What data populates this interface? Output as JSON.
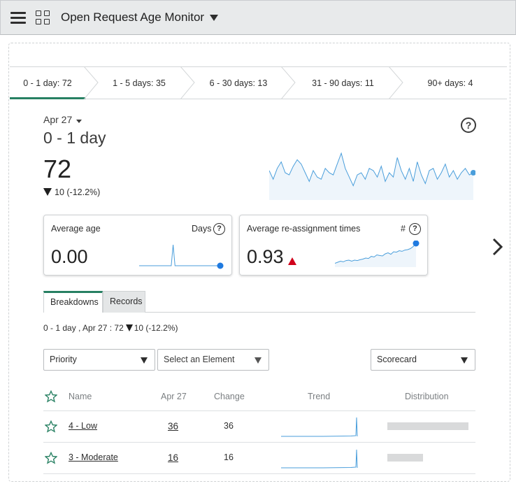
{
  "header": {
    "menu_icon": "hamburger-icon",
    "apps_icon": "grid-icon",
    "title": "Open Request Age Monitor"
  },
  "tabs": [
    {
      "label": "0 - 1 day: 72",
      "active": true
    },
    {
      "label": "1 - 5 days: 35",
      "active": false
    },
    {
      "label": "6 - 30 days: 13",
      "active": false
    },
    {
      "label": "31 - 90 days: 11",
      "active": false
    },
    {
      "label": "90+ days: 4",
      "active": false
    }
  ],
  "score": {
    "date": "Apr 27",
    "bucket": "0 - 1 day",
    "value": "72",
    "delta": "10 (-12.2%)",
    "trend_values": [
      0.55,
      0.35,
      0.6,
      0.75,
      0.5,
      0.45,
      0.65,
      0.8,
      0.7,
      0.5,
      0.3,
      0.55,
      0.4,
      0.35,
      0.6,
      0.5,
      0.45,
      0.7,
      0.95,
      0.6,
      0.4,
      0.2,
      0.45,
      0.5,
      0.35,
      0.6,
      0.55,
      0.4,
      0.65,
      0.3,
      0.5,
      0.4,
      0.85,
      0.55,
      0.35,
      0.6,
      0.3,
      0.75,
      0.45,
      0.25,
      0.55,
      0.6,
      0.35,
      0.5,
      0.7,
      0.4,
      0.55,
      0.35,
      0.5,
      0.6,
      0.45,
      0.5
    ],
    "accent_color": "#278062",
    "spark_color": "#4a9edb"
  },
  "cards": [
    {
      "label": "Average age",
      "unit": "Days",
      "value": "0.00",
      "trend": "none",
      "spark": [
        0,
        0,
        0,
        0,
        0,
        0,
        0,
        0,
        0,
        0,
        0,
        0,
        0,
        0,
        0,
        0,
        0,
        0,
        1,
        0,
        0,
        0,
        0,
        0,
        0,
        0,
        0,
        0,
        0,
        0,
        0,
        0,
        0,
        0,
        0,
        0,
        0,
        0,
        0,
        0,
        0,
        0,
        0,
        0
      ]
    },
    {
      "label": "Average re-assignment times",
      "unit": "#",
      "value": "0.93",
      "trend": "up",
      "trend_color": "#d0021b",
      "spark": [
        0.05,
        0.1,
        0.15,
        0.12,
        0.18,
        0.2,
        0.15,
        0.2,
        0.18,
        0.22,
        0.25,
        0.3,
        0.28,
        0.38,
        0.35,
        0.45,
        0.42,
        0.4,
        0.5,
        0.55,
        0.48,
        0.6,
        0.58,
        0.65,
        0.62,
        0.68,
        0.7,
        0.75,
        0.85,
        1.0
      ]
    }
  ],
  "breakdown": {
    "tabs": [
      "Breakdowns",
      "Records"
    ],
    "summary_prefix": "0 - 1 day , Apr 27 : 72",
    "summary_delta": "10 (-12.2%)",
    "selects": {
      "group": "Priority",
      "element": "Select an Element",
      "view": "Scorecard"
    },
    "columns": [
      "Name",
      "Apr 27",
      "Change",
      "Trend",
      "Distribution"
    ],
    "rows": [
      {
        "name": "4 - Low",
        "value": "36",
        "change": "36",
        "distribution": 0.5
      },
      {
        "name": "3 - Moderate",
        "value": "16",
        "change": "16",
        "distribution": 0.222
      }
    ]
  }
}
